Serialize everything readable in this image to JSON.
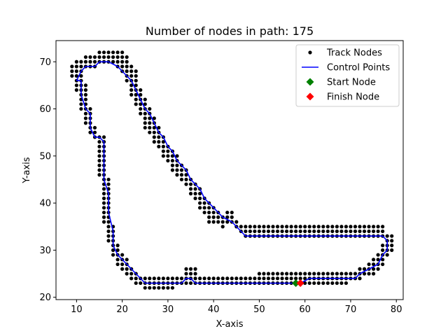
{
  "chart_data": {
    "type": "scatter",
    "title": "Number of nodes in path: 175",
    "xlabel": "X-axis",
    "ylabel": "Y-axis",
    "xlim": [
      5.5,
      81.5
    ],
    "ylim": [
      19.5,
      74.5
    ],
    "xticks": [
      10,
      20,
      30,
      40,
      50,
      60,
      70,
      80
    ],
    "yticks": [
      20,
      30,
      40,
      50,
      60,
      70
    ],
    "grid": false,
    "legend_position": "top-right",
    "colors": {
      "track_nodes": "#000000",
      "control_points": "#0000ff",
      "start_node": "#008000",
      "finish_node": "#ff0000"
    },
    "legend": [
      {
        "label": "Track Nodes",
        "marker": "dot",
        "color": "#000000"
      },
      {
        "label": "Control Points",
        "marker": "line",
        "color": "#0000ff"
      },
      {
        "label": "Start Node",
        "marker": "diamond",
        "color": "#008000"
      },
      {
        "label": "Finish Node",
        "marker": "diamond",
        "color": "#ff0000"
      }
    ],
    "series": [
      {
        "name": "Control Points",
        "type": "line",
        "points": [
          [
            10,
            66
          ],
          [
            11,
            68
          ],
          [
            12,
            69
          ],
          [
            14,
            69
          ],
          [
            15,
            70
          ],
          [
            17,
            70
          ],
          [
            19,
            69
          ],
          [
            21,
            67
          ],
          [
            22,
            66
          ],
          [
            23,
            64
          ],
          [
            24,
            62
          ],
          [
            25,
            60
          ],
          [
            26,
            59
          ],
          [
            27,
            57
          ],
          [
            28,
            55
          ],
          [
            29,
            54
          ],
          [
            30,
            52
          ],
          [
            31,
            51
          ],
          [
            32,
            49
          ],
          [
            33,
            48
          ],
          [
            34,
            47
          ],
          [
            35,
            45
          ],
          [
            36,
            44
          ],
          [
            37,
            43
          ],
          [
            38,
            41
          ],
          [
            39,
            40
          ],
          [
            40,
            39
          ],
          [
            41,
            38
          ],
          [
            42,
            37
          ],
          [
            44,
            36
          ],
          [
            45,
            35
          ],
          [
            46,
            34
          ],
          [
            47,
            33
          ],
          [
            50,
            33
          ],
          [
            55,
            33
          ],
          [
            60,
            33
          ],
          [
            65,
            33
          ],
          [
            70,
            33
          ],
          [
            75,
            33
          ],
          [
            77,
            33
          ],
          [
            78,
            32
          ],
          [
            78,
            30
          ],
          [
            77,
            29
          ],
          [
            76,
            27
          ],
          [
            74,
            26
          ],
          [
            72,
            25
          ],
          [
            71,
            24
          ],
          [
            69,
            24
          ],
          [
            66,
            24
          ],
          [
            63,
            24
          ],
          [
            61,
            24
          ],
          [
            59,
            23
          ],
          [
            57,
            23
          ],
          [
            54,
            23
          ],
          [
            50,
            23
          ],
          [
            45,
            23
          ],
          [
            40,
            23
          ],
          [
            36,
            23
          ],
          [
            35,
            24
          ],
          [
            34,
            24
          ],
          [
            33,
            23
          ],
          [
            30,
            23
          ],
          [
            25,
            23
          ],
          [
            23,
            25
          ],
          [
            21,
            27
          ],
          [
            19,
            29
          ],
          [
            18,
            31
          ],
          [
            18,
            34
          ],
          [
            17,
            38
          ],
          [
            17,
            42
          ],
          [
            16,
            45
          ],
          [
            16,
            50
          ],
          [
            16,
            53
          ],
          [
            15,
            54
          ],
          [
            14,
            54
          ],
          [
            13,
            56
          ],
          [
            13,
            59
          ],
          [
            12,
            60
          ],
          [
            11,
            63
          ],
          [
            11,
            66
          ],
          [
            10,
            66
          ]
        ]
      },
      {
        "name": "Start Node",
        "type": "point",
        "points": [
          [
            58,
            23
          ]
        ]
      },
      {
        "name": "Finish Node",
        "type": "point",
        "points": [
          [
            59,
            23
          ]
        ]
      }
    ],
    "track_node_groups": [
      {
        "y": 72,
        "xs": [
          15,
          16,
          17,
          18,
          19,
          20
        ]
      },
      {
        "y": 71,
        "xs": [
          12,
          13,
          14,
          15,
          16,
          17,
          18,
          19,
          20,
          21
        ]
      },
      {
        "y": 70,
        "xs": [
          10,
          11,
          12,
          13,
          14,
          15,
          16,
          17,
          18,
          19,
          20,
          21
        ]
      },
      {
        "y": 69,
        "xs": [
          9,
          10,
          11,
          12,
          13,
          14,
          19,
          20,
          21,
          22
        ]
      },
      {
        "y": 68,
        "xs": [
          9,
          10,
          11,
          20,
          21,
          22,
          23
        ]
      },
      {
        "y": 67,
        "xs": [
          9,
          10,
          11,
          21,
          22,
          23
        ]
      },
      {
        "y": 66,
        "xs": [
          10,
          11,
          21,
          22,
          23
        ]
      },
      {
        "y": 65,
        "xs": [
          10,
          11,
          12,
          22,
          23
        ]
      },
      {
        "y": 64,
        "xs": [
          10,
          11,
          12,
          22,
          23,
          24
        ]
      },
      {
        "y": 63,
        "xs": [
          11,
          12,
          22,
          23,
          24
        ]
      },
      {
        "y": 62,
        "xs": [
          11,
          12,
          23,
          24,
          25
        ]
      },
      {
        "y": 61,
        "xs": [
          11,
          12,
          23,
          24,
          25
        ]
      },
      {
        "y": 60,
        "xs": [
          11,
          12,
          13,
          24,
          25,
          26
        ]
      },
      {
        "y": 59,
        "xs": [
          12,
          13,
          24,
          25,
          26
        ]
      },
      {
        "y": 58,
        "xs": [
          12,
          13,
          25,
          26,
          27
        ]
      },
      {
        "y": 57,
        "xs": [
          12,
          13,
          25,
          26,
          27
        ]
      },
      {
        "y": 56,
        "xs": [
          13,
          14,
          25,
          26,
          27,
          28
        ]
      },
      {
        "y": 55,
        "xs": [
          13,
          14,
          26,
          27,
          28
        ]
      },
      {
        "y": 54,
        "xs": [
          14,
          15,
          16,
          27,
          28,
          29
        ]
      },
      {
        "y": 53,
        "xs": [
          15,
          16,
          27,
          28,
          29
        ]
      },
      {
        "y": 52,
        "xs": [
          15,
          16,
          28,
          29,
          30
        ]
      },
      {
        "y": 51,
        "xs": [
          15,
          16,
          29,
          30,
          31
        ]
      },
      {
        "y": 50,
        "xs": [
          15,
          16,
          29,
          30,
          31,
          32
        ]
      },
      {
        "y": 49,
        "xs": [
          15,
          16,
          30,
          31,
          32
        ]
      },
      {
        "y": 48,
        "xs": [
          15,
          16,
          31,
          32,
          33
        ]
      },
      {
        "y": 47,
        "xs": [
          15,
          16,
          31,
          32,
          33,
          34
        ]
      },
      {
        "y": 46,
        "xs": [
          15,
          16,
          32,
          33,
          34
        ]
      },
      {
        "y": 45,
        "xs": [
          16,
          17,
          33,
          34,
          35
        ]
      },
      {
        "y": 44,
        "xs": [
          16,
          17,
          34,
          35,
          36
        ]
      },
      {
        "y": 43,
        "xs": [
          16,
          17,
          35,
          36,
          37
        ]
      },
      {
        "y": 42,
        "xs": [
          16,
          17,
          35,
          36,
          37
        ]
      },
      {
        "y": 41,
        "xs": [
          16,
          17,
          36,
          37,
          38
        ]
      },
      {
        "y": 40,
        "xs": [
          16,
          17,
          37,
          38,
          39
        ]
      },
      {
        "y": 39,
        "xs": [
          16,
          17,
          37,
          38,
          39,
          40
        ]
      },
      {
        "y": 38,
        "xs": [
          16,
          17,
          38,
          39,
          40,
          41,
          43,
          44
        ]
      },
      {
        "y": 37,
        "xs": [
          16,
          17,
          39,
          40,
          41,
          42,
          43,
          44
        ]
      },
      {
        "y": 36,
        "xs": [
          16,
          17,
          39,
          40,
          41,
          42,
          43,
          44,
          45
        ]
      },
      {
        "y": 35,
        "xs": [
          17,
          18,
          42,
          45,
          46,
          47,
          48,
          49,
          50,
          51,
          52,
          53,
          54,
          55,
          56,
          57,
          58,
          59,
          60,
          61,
          62,
          63,
          64,
          65,
          66,
          67,
          68,
          69,
          70,
          71,
          72,
          73,
          74,
          75,
          76,
          77
        ]
      },
      {
        "y": 34,
        "xs": [
          17,
          18,
          46,
          47,
          48,
          49,
          50,
          51,
          52,
          53,
          54,
          55,
          56,
          57,
          58,
          59,
          60,
          61,
          62,
          63,
          64,
          65,
          66,
          67,
          68,
          69,
          70,
          71,
          72,
          73,
          74,
          75,
          76,
          77
        ]
      },
      {
        "y": 33,
        "xs": [
          17,
          18,
          47,
          48,
          49,
          50,
          51,
          52,
          53,
          54,
          55,
          56,
          57,
          58,
          59,
          60,
          61,
          62,
          63,
          64,
          65,
          66,
          67,
          68,
          69,
          70,
          71,
          72,
          73,
          74,
          75,
          76,
          77,
          78,
          79
        ]
      },
      {
        "y": 32,
        "xs": [
          17,
          18,
          78,
          79
        ]
      },
      {
        "y": 31,
        "xs": [
          18,
          19,
          77,
          78,
          79
        ]
      },
      {
        "y": 30,
        "xs": [
          18,
          19,
          77,
          78,
          79
        ]
      },
      {
        "y": 29,
        "xs": [
          18,
          19,
          20,
          76,
          77,
          78
        ]
      },
      {
        "y": 28,
        "xs": [
          19,
          20,
          21,
          75,
          76,
          77
        ]
      },
      {
        "y": 27,
        "xs": [
          19,
          20,
          21,
          74,
          75,
          76,
          77
        ]
      },
      {
        "y": 26,
        "xs": [
          20,
          21,
          22,
          34,
          35,
          36,
          72,
          73,
          74,
          75,
          76
        ]
      },
      {
        "y": 25,
        "xs": [
          21,
          22,
          23,
          34,
          35,
          36,
          50,
          51,
          52,
          53,
          54,
          55,
          56,
          57,
          58,
          59,
          60,
          61,
          62,
          63,
          64,
          65,
          66,
          67,
          68,
          69,
          70,
          71,
          72,
          73,
          74,
          75
        ]
      },
      {
        "y": 24,
        "xs": [
          22,
          23,
          24,
          25,
          26,
          27,
          28,
          29,
          30,
          31,
          32,
          33,
          34,
          35,
          36,
          37,
          38,
          39,
          40,
          41,
          42,
          43,
          44,
          45,
          46,
          47,
          48,
          49,
          50,
          51,
          52,
          53,
          54,
          55,
          56,
          57,
          58,
          59,
          60,
          61,
          62,
          63,
          64,
          65,
          66,
          67,
          68,
          69,
          70,
          71,
          72
        ]
      },
      {
        "y": 23,
        "xs": [
          23,
          24,
          25,
          26,
          27,
          28,
          29,
          30,
          31,
          32,
          33,
          34,
          35,
          36,
          37,
          38,
          39,
          40,
          41,
          42,
          43,
          44,
          45,
          46,
          47,
          48,
          49,
          50,
          51,
          52,
          53,
          54,
          55,
          56,
          57,
          58,
          59,
          60,
          61,
          62,
          63,
          64,
          65,
          66,
          67,
          68,
          69
        ]
      },
      {
        "y": 22,
        "xs": [
          25,
          26,
          27,
          28,
          29,
          30,
          31
        ]
      }
    ]
  }
}
